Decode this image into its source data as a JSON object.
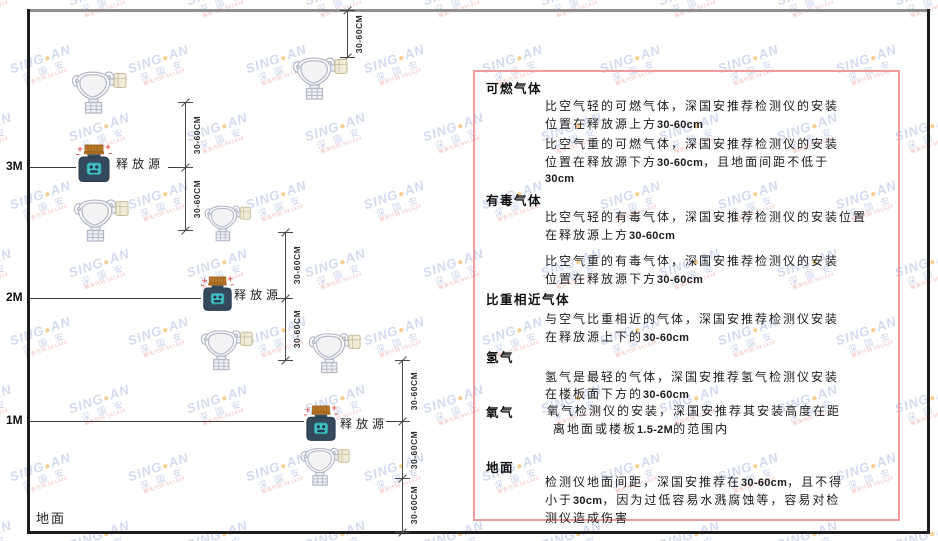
{
  "watermark": {
    "brand_left": "SING",
    "brand_dot": "●",
    "brand_right": "AN",
    "cn": "深 国 安",
    "code": "服务代码:661434"
  },
  "diagram": {
    "ground_label": "地面",
    "source_label": "释放源",
    "dim_label": "30-60CM",
    "levels": [
      "3M",
      "2M",
      "1M"
    ]
  },
  "panel": {
    "sections": [
      {
        "heading": "可燃气体",
        "paragraphs": [
          [
            "比空气轻的可燃气体，深国安推荐检测仪的安装",
            "位置在释放源上方30-60cm"
          ],
          [
            "比空气重的可燃气体，深国安推荐检测仪的安装",
            "位置在释放源下方30-60cm，且地面间距不低于",
            "30cm"
          ]
        ]
      },
      {
        "heading": "有毒气体",
        "paragraphs": [
          [
            "比空气轻的有毒气体，深国安推荐检测仪的安装位置",
            "在释放源上方30-60cm"
          ],
          [
            "比空气重的有毒气体，深国安推荐检测仪的安装",
            "位置在释放源下方30-60cm"
          ]
        ]
      },
      {
        "heading": "比重相近气体",
        "paragraphs": [
          [
            "与空气比重相近的气体，深国安推荐检测仪安装",
            "在释放源上下的30-60cm"
          ]
        ]
      },
      {
        "heading": "氢气",
        "paragraphs": [
          [
            "氢气是最轻的气体，深国安推荐氢气检测仪安装",
            "在楼板面下方的30-60cm"
          ]
        ]
      },
      {
        "heading": "氧气",
        "paragraphs": [
          [
            "氧气检测仪的安装，深国安推荐其安装高度在距",
            "离地面或楼板1.5-2M的范围内"
          ]
        ]
      },
      {
        "heading": "地面",
        "paragraphs": [
          [
            "检测仪地面间距，深国安推荐在30-60cm，且不得",
            "小于30cm，因为过低容易水溅腐蚀等，容易对检",
            "测仪造成伤害"
          ]
        ]
      }
    ]
  }
}
